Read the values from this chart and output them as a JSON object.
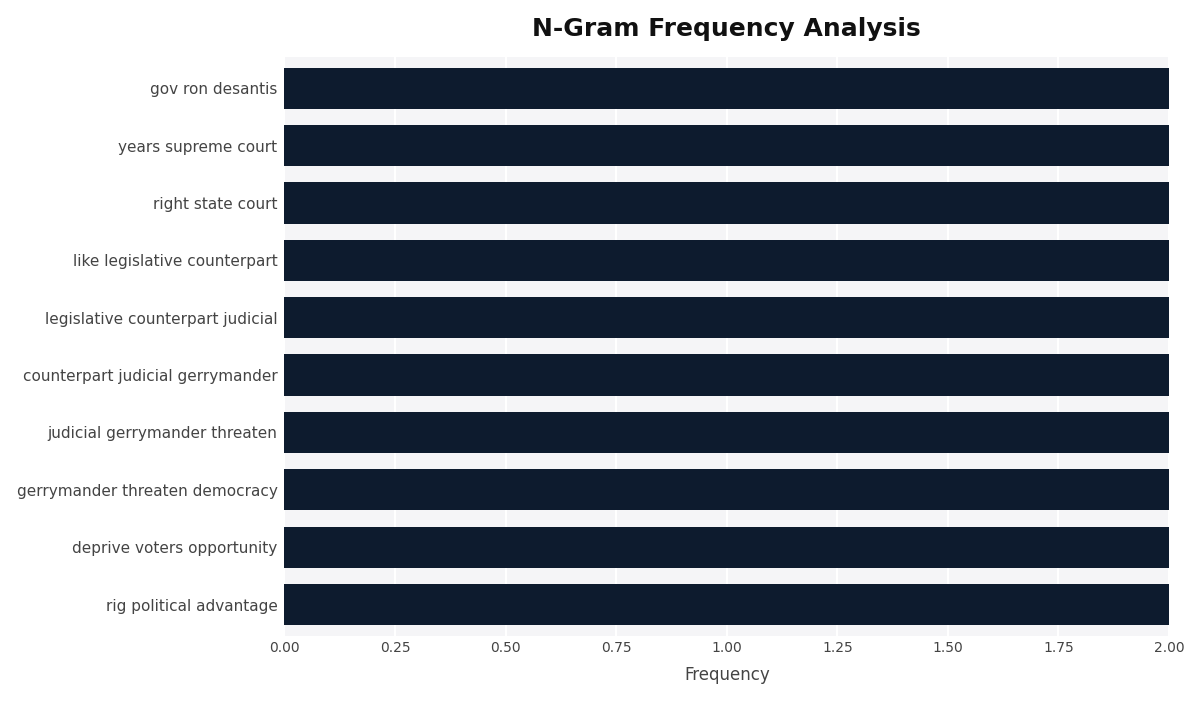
{
  "title": "N-Gram Frequency Analysis",
  "categories": [
    "rig political advantage",
    "deprive voters opportunity",
    "gerrymander threaten democracy",
    "judicial gerrymander threaten",
    "counterpart judicial gerrymander",
    "legislative counterpart judicial",
    "like legislative counterpart",
    "right state court",
    "years supreme court",
    "gov ron desantis"
  ],
  "values": [
    2.0,
    2.0,
    2.0,
    2.0,
    2.0,
    2.0,
    2.0,
    2.0,
    2.0,
    2.0
  ],
  "bar_color": "#0d1b2e",
  "xlabel": "Frequency",
  "ylabel": "",
  "xlim": [
    0,
    2.0
  ],
  "xticks": [
    0.0,
    0.25,
    0.5,
    0.75,
    1.0,
    1.25,
    1.5,
    1.75,
    2.0
  ],
  "xtick_labels": [
    "0.00",
    "0.25",
    "0.50",
    "0.75",
    "1.00",
    "1.25",
    "1.50",
    "1.75",
    "2.00"
  ],
  "figure_bg_color": "#ffffff",
  "plot_bg_color": "#f5f5f7",
  "title_fontsize": 18,
  "label_fontsize": 11,
  "tick_fontsize": 10,
  "bar_height": 0.72,
  "grid_color": "#ffffff",
  "grid_linewidth": 1.5,
  "ylabel_color": "#444444",
  "tick_color": "#444444"
}
